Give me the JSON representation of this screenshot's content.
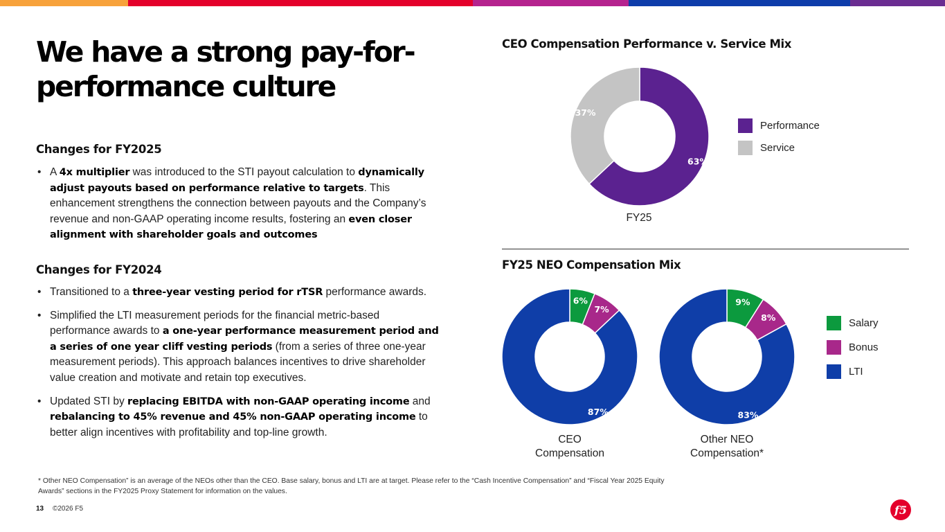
{
  "top_bar": {
    "segments": [
      {
        "color": "#F7A23B",
        "flex": 185
      },
      {
        "color": "#E4002B",
        "flex": 498
      },
      {
        "color": "#B5238E",
        "flex": 225
      },
      {
        "color": "#0E3DAA",
        "flex": 320
      },
      {
        "color": "#6A2C91",
        "flex": 137
      }
    ]
  },
  "title": "We have a strong pay-for-performance culture",
  "fy2025": {
    "heading": "Changes for FY2025",
    "bullets": [
      {
        "parts": [
          {
            "t": "A ",
            "b": false
          },
          {
            "t": "4x multiplier",
            "b": true
          },
          {
            "t": " was introduced to the STI payout calculation to ",
            "b": false
          },
          {
            "t": "dynamically adjust payouts based on performance relative to targets",
            "b": true
          },
          {
            "t": ". This enhancement strengthens the connection between payouts and the Company’s revenue and non-GAAP operating income results, fostering an ",
            "b": false
          },
          {
            "t": "even closer alignment with shareholder goals and outcomes",
            "b": true
          }
        ]
      }
    ]
  },
  "fy2024": {
    "heading": "Changes for FY2024",
    "bullets": [
      {
        "parts": [
          {
            "t": "Transitioned to a ",
            "b": false
          },
          {
            "t": "three-year vesting period for rTSR",
            "b": true
          },
          {
            "t": " performance awards.",
            "b": false
          }
        ]
      },
      {
        "parts": [
          {
            "t": "Simplified the LTI measurement periods for the financial metric-based performance awards to ",
            "b": false
          },
          {
            "t": "a one-year performance measurement period and a series of one year cliff vesting periods",
            "b": true
          },
          {
            "t": " (from a series of three one-year measurement periods). This approach balances incentives to drive shareholder value creation and motivate and retain top executives.",
            "b": false
          }
        ]
      },
      {
        "parts": [
          {
            "t": "Updated STI by ",
            "b": false
          },
          {
            "t": "replacing EBITDA with non-GAAP operating income",
            "b": true
          },
          {
            "t": " and ",
            "b": false
          },
          {
            "t": "rebalancing to 45% revenue and 45% non-GAAP operating income",
            "b": true
          },
          {
            "t": " to better align incentives with profitability and top-line growth.",
            "b": false
          }
        ]
      }
    ]
  },
  "chart_data": [
    {
      "type": "pie",
      "title": "CEO Compensation Performance v. Service Mix",
      "slices": [
        {
          "label": "Performance",
          "value": 63,
          "color": "#5B2290"
        },
        {
          "label": "Service",
          "value": 37,
          "color": "#C4C4C4"
        }
      ],
      "data_labels": [
        "63%",
        "37%"
      ],
      "caption": "FY25",
      "legend": [
        "Performance",
        "Service"
      ]
    },
    {
      "type": "pie",
      "title": "FY25 NEO Compensation Mix",
      "legend": [
        "Salary",
        "Bonus",
        "LTI"
      ],
      "colors": {
        "Salary": "#0C9A3E",
        "Bonus": "#A8288A",
        "LTI": "#0F3EA8"
      },
      "charts": [
        {
          "caption_line1": "CEO",
          "caption_line2": "Compensation",
          "slices": [
            {
              "label": "Salary",
              "value": 6
            },
            {
              "label": "Bonus",
              "value": 7
            },
            {
              "label": "LTI",
              "value": 87
            }
          ],
          "data_labels": [
            "6%",
            "7%",
            "87%"
          ]
        },
        {
          "caption_line1": "Other NEO",
          "caption_line2": "Compensation*",
          "slices": [
            {
              "label": "Salary",
              "value": 9
            },
            {
              "label": "Bonus",
              "value": 8
            },
            {
              "label": "LTI",
              "value": 83
            }
          ],
          "data_labels": [
            "9%",
            "8%",
            "83%"
          ]
        }
      ]
    }
  ],
  "footnote": "* Other NEO Compensation” is an average of the NEOs other than the CEO. Base salary, bonus and LTI are at target. Please refer to the “Cash Incentive Compensation” and “Fiscal Year 2025 Equity Awards” sections in the FY2025 Proxy Statement for information on the values.",
  "page_number": "13",
  "copyright": "©2026 F5",
  "logo_text": "f5",
  "logo_color": "#E4002B"
}
